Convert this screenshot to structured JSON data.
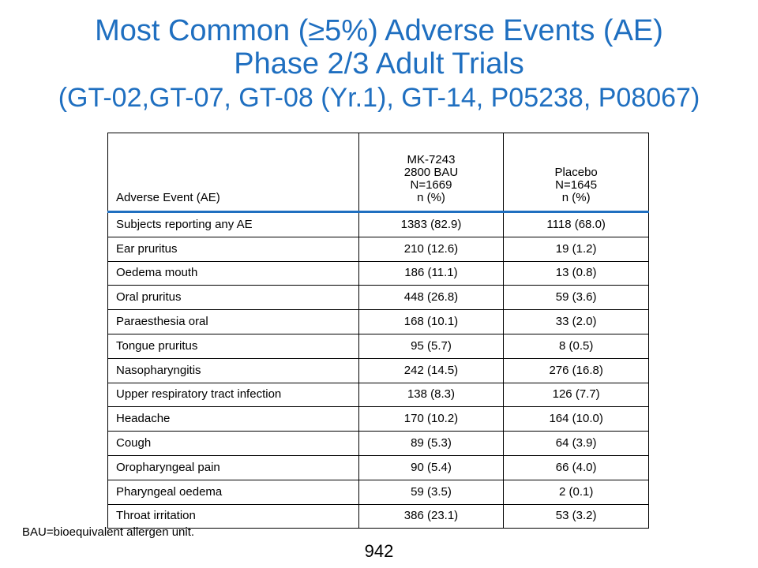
{
  "title": {
    "line1": "Most Common (≥5%) Adverse Events (AE)",
    "line2": "Phase 2/3 Adult Trials",
    "line3": "(GT-02,GT-07, GT-08 (Yr.1), GT-14, P05238, P08067)"
  },
  "table": {
    "headers": {
      "ae": "Adverse Event (AE)",
      "drug": [
        "MK-7243",
        "2800 BAU",
        "N=1669",
        "n (%)"
      ],
      "placebo": [
        "Placebo",
        "N=1645",
        "n (%)"
      ]
    },
    "rows": [
      {
        "event": "Subjects reporting any AE",
        "drug": "1383 (82.9)",
        "placebo": "1118 (68.0)"
      },
      {
        "event": "Ear pruritus",
        "drug": "210 (12.6)",
        "placebo": "19 (1.2)"
      },
      {
        "event": "Oedema mouth",
        "drug": "186 (11.1)",
        "placebo": "13 (0.8)"
      },
      {
        "event": "Oral pruritus",
        "drug": "448 (26.8)",
        "placebo": "59 (3.6)"
      },
      {
        "event": "Paraesthesia oral",
        "drug": "168 (10.1)",
        "placebo": "33 (2.0)"
      },
      {
        "event": "Tongue pruritus",
        "drug": "95 (5.7)",
        "placebo": "8 (0.5)"
      },
      {
        "event": "Nasopharyngitis",
        "drug": "242 (14.5)",
        "placebo": "276 (16.8)"
      },
      {
        "event": "Upper respiratory tract infection",
        "drug": "138 (8.3)",
        "placebo": "126 (7.7)"
      },
      {
        "event": "Headache",
        "drug": "170 (10.2)",
        "placebo": "164 (10.0)"
      },
      {
        "event": "Cough",
        "drug": "89 (5.3)",
        "placebo": "64 (3.9)"
      },
      {
        "event": "Oropharyngeal pain",
        "drug": "90 (5.4)",
        "placebo": "66 (4.0)"
      },
      {
        "event": "Pharyngeal oedema",
        "drug": "59 (3.5)",
        "placebo": "2 (0.1)"
      },
      {
        "event": "Throat irritation",
        "drug": "386 (23.1)",
        "placebo": "53 (3.2)"
      }
    ]
  },
  "footnote": "BAU=bioequivalent allergen unit.",
  "page_number": "942",
  "colors": {
    "title": "#1f6fc0",
    "header_rule": "#1f6fc0"
  }
}
